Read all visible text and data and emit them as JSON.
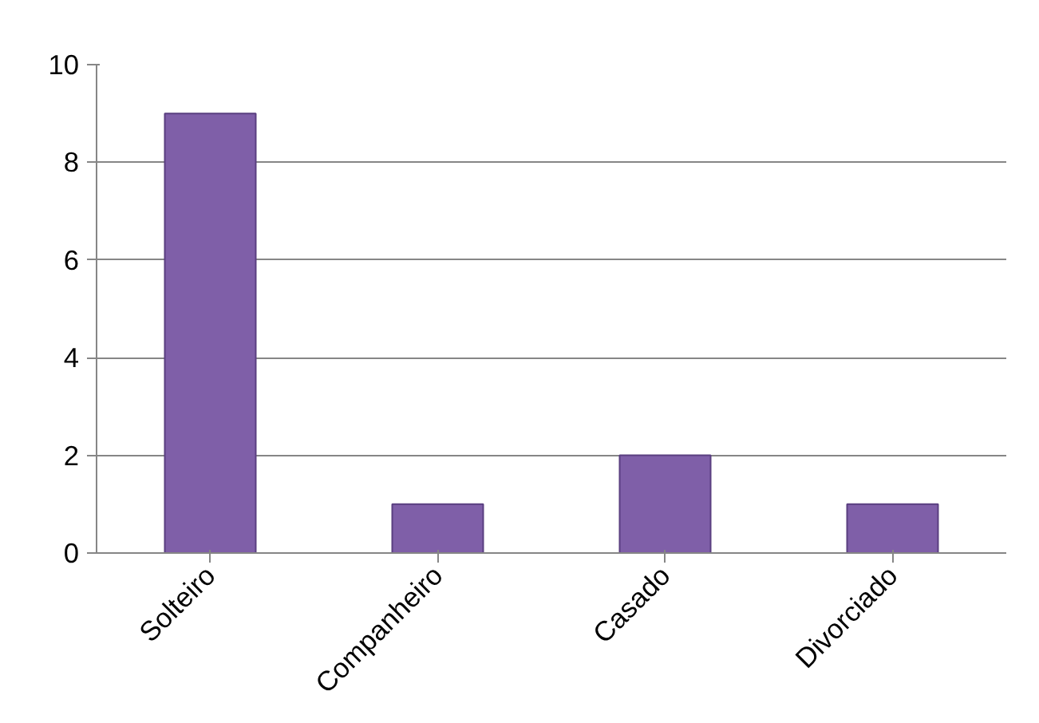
{
  "chart_data": {
    "type": "bar",
    "categories": [
      "Solteiro",
      "Companheiro",
      "Casado",
      "Divorciado"
    ],
    "values": [
      9,
      1,
      2,
      1
    ],
    "color": "#7f5fa8",
    "ylim": [
      0,
      10
    ],
    "yticks": [
      0,
      2,
      4,
      6,
      8,
      10
    ],
    "grid": "y"
  }
}
